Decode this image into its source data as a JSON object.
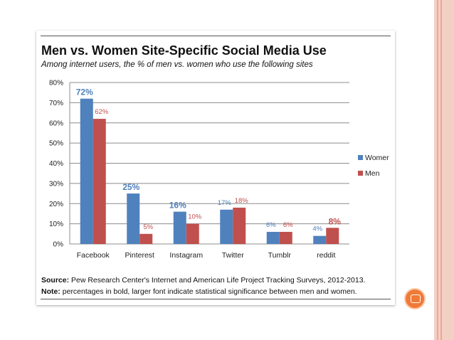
{
  "chart_data": {
    "type": "bar",
    "title": "Men vs. Women Site-Specific Social Media Use",
    "subtitle": "Among internet users, the % of men vs. women who use the following sites",
    "categories": [
      "Facebook",
      "Pinterest",
      "Instagram",
      "Twitter",
      "Tumblr",
      "reddit"
    ],
    "series": [
      {
        "name": "Women",
        "legend_label": "Womer",
        "color": "#4f81bd",
        "values": [
          72,
          25,
          16,
          17,
          6,
          4
        ],
        "labels": [
          "72%",
          "25%",
          "16%",
          "17%",
          "6%",
          "4%"
        ],
        "bold": [
          true,
          true,
          true,
          false,
          false,
          false
        ]
      },
      {
        "name": "Men",
        "legend_label": "Men",
        "color": "#c0504d",
        "values": [
          62,
          5,
          10,
          18,
          6,
          8
        ],
        "labels": [
          "62%",
          "5%",
          "10%",
          "18%",
          "6%",
          "8%"
        ],
        "bold": [
          false,
          false,
          false,
          false,
          false,
          true
        ]
      }
    ],
    "yticks": [
      "0%",
      "10%",
      "20%",
      "30%",
      "40%",
      "50%",
      "60%",
      "70%",
      "80%"
    ],
    "ylim": [
      0,
      80
    ],
    "grid": true,
    "legend_position": "right",
    "xlabel": "",
    "ylabel": ""
  },
  "footer": {
    "source_label": "Source:",
    "source_text": " Pew Research Center's Internet and American Life Project Tracking Surveys, 2012-2013.",
    "note_label": "Note:",
    "note_text": " percentages in bold, larger font indicate statistical significance between men and women."
  }
}
